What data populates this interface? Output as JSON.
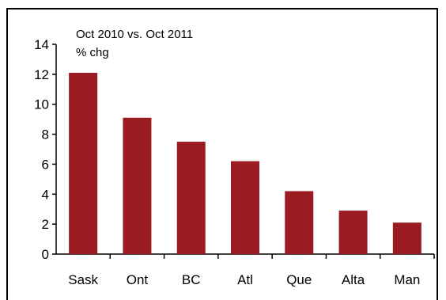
{
  "chart_data": {
    "type": "bar",
    "title": "",
    "subtitle_lines": [
      "Oct 2010 vs. Oct 2011",
      "% chg"
    ],
    "xlabel": "",
    "ylabel": "",
    "categories": [
      "Sask",
      "Ont",
      "BC",
      "Atl",
      "Que",
      "Alta",
      "Man"
    ],
    "values": [
      12.1,
      9.1,
      7.5,
      6.2,
      4.2,
      2.9,
      2.1
    ],
    "ylim": [
      0,
      14
    ],
    "yticks": [
      0,
      2,
      4,
      6,
      8,
      10,
      12,
      14
    ],
    "grid": false,
    "legend": "none",
    "bar_color": "#9b1b22"
  }
}
